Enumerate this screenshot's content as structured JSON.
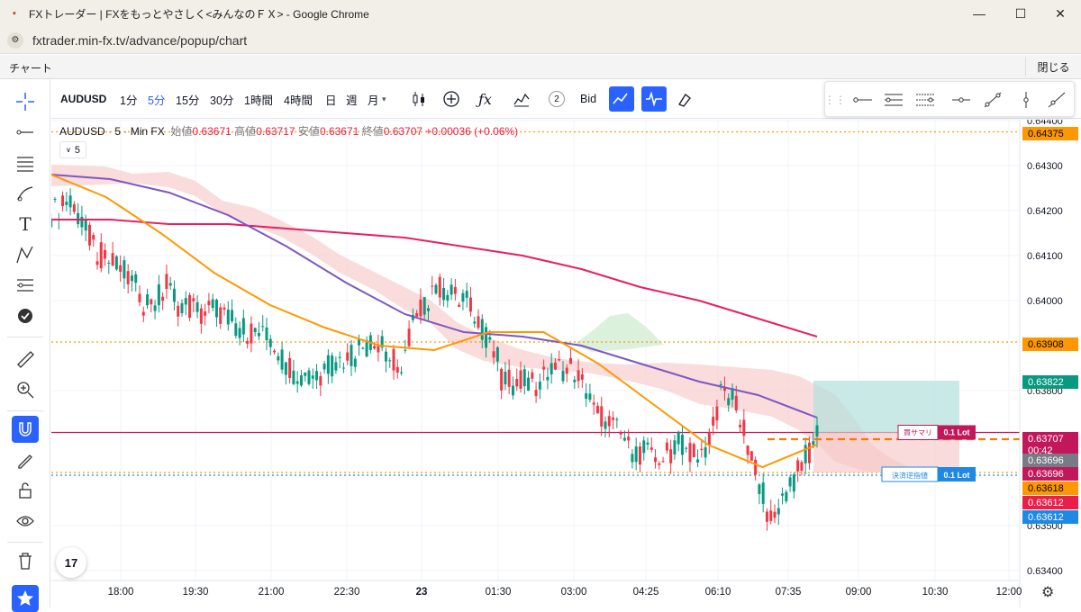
{
  "window": {
    "title": "FXトレーダー | FXをもっとやさしく<みんなのＦＸ> - Google Chrome",
    "url": "fxtrader.min-fx.tv/advance/popup/chart",
    "minimize": "—",
    "maximize": "☐",
    "close": "✕"
  },
  "app": {
    "title": "チャート",
    "close_label": "閉じる"
  },
  "toolbar": {
    "symbol": "AUDUSD",
    "timeframes": [
      "1分",
      "5分",
      "15分",
      "30分",
      "1時間",
      "4時間",
      "日",
      "週",
      "月"
    ],
    "active_timeframe": "5分",
    "indicator_count": "2",
    "bid_label": "Bid"
  },
  "legend": {
    "symbol": "AUDUSD",
    "interval": "5",
    "source": "Min FX",
    "open_label": "始値",
    "open": "0.63671",
    "high_label": "高値",
    "high": "0.63717",
    "low_label": "安値",
    "low": "0.63671",
    "close_label": "終値",
    "close": "0.63707",
    "change": "+0.00036 (+0.06%)",
    "toggle": "5"
  },
  "orders": {
    "position": {
      "label": "買サマリ",
      "lot": "0.1 Lot"
    },
    "stop": {
      "label": "決済逆指値",
      "lot": "0.1 Lot"
    }
  },
  "colors": {
    "up": "#089981",
    "down": "#f23645",
    "ma_pink": "#e91e63",
    "ma_purple": "#7e57c2",
    "ma_orange": "#ff9800",
    "accent": "#2962ff",
    "cloud_red": "#f8d0d0",
    "cloud_green": "#d8f0d8"
  },
  "chart_data": {
    "type": "candlestick",
    "symbol": "AUDUSD",
    "y_axis": {
      "range": [
        0.6335,
        0.6445
      ],
      "ticks": [
        "0.64400",
        "0.64300",
        "0.64200",
        "0.64100",
        "0.64000",
        "0.63800",
        "0.63500",
        "0.63400"
      ]
    },
    "x_axis": {
      "ticks": [
        "18:00",
        "19:30",
        "21:00",
        "22:30",
        "23",
        "01:30",
        "03:00",
        "04:25",
        "06:10",
        "07:35",
        "09:00",
        "10:30",
        "12:00"
      ]
    },
    "price_labels": [
      {
        "value": "0.64375",
        "color": "#ff9800",
        "text_color": "#000000"
      },
      {
        "value": "0.63908",
        "color": "#ff9800",
        "text_color": "#000000"
      },
      {
        "value": "0.63822",
        "color": "#089981",
        "text_color": "#ffffff"
      },
      {
        "value": "0.63707",
        "sub": "00:42",
        "color": "#c2185b",
        "text_color": "#ffffff"
      },
      {
        "value": "0.63696",
        "color": "#787b86",
        "text_color": "#ffffff"
      },
      {
        "value": "0.63696",
        "color": "#c2185b",
        "text_color": "#ffffff"
      },
      {
        "value": "0.63618",
        "color": "#ff9800",
        "text_color": "#000000"
      },
      {
        "value": "0.63612",
        "color": "#e91e4a",
        "text_color": "#ffffff"
      },
      {
        "value": "0.63612",
        "color": "#1e88e5",
        "text_color": "#ffffff"
      }
    ],
    "horizontal_lines": [
      {
        "price": 0.64375,
        "color": "#ff9800",
        "style": "dotted"
      },
      {
        "price": 0.63908,
        "color": "#ff9800",
        "style": "dotted"
      },
      {
        "price": 0.63707,
        "color": "#c2185b",
        "style": "solid"
      },
      {
        "price": 0.63618,
        "color": "#ff9800",
        "style": "dotted"
      },
      {
        "price": 0.63612,
        "color": "#1e88e5",
        "style": "dotted"
      }
    ],
    "ma_pink": [
      0.6418,
      0.6418,
      0.6417,
      0.6417,
      0.6416,
      0.6415,
      0.6414,
      0.6412,
      0.641,
      0.6407,
      0.6403,
      0.64,
      0.6396,
      0.6392
    ],
    "ma_purple": [
      0.6428,
      0.6427,
      0.6424,
      0.6419,
      0.6412,
      0.6404,
      0.6397,
      0.6393,
      0.6392,
      0.639,
      0.6386,
      0.6382,
      0.6379,
      0.6374
    ],
    "ma_orange": [
      0.6428,
      0.6423,
      0.6415,
      0.6406,
      0.6399,
      0.6394,
      0.639,
      0.6389,
      0.6393,
      0.6393,
      0.6386,
      0.6377,
      0.6368,
      0.6363,
      0.6368
    ]
  }
}
